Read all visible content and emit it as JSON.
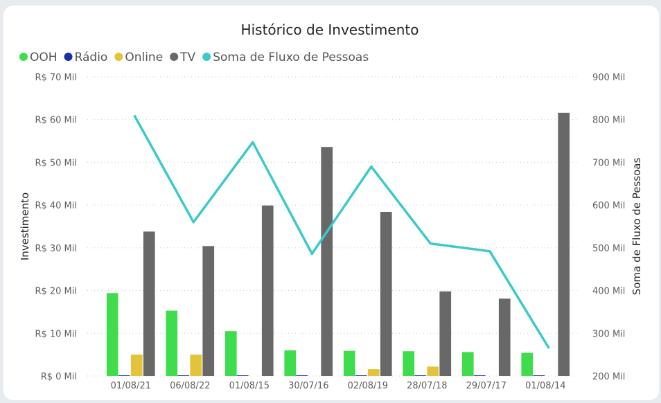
{
  "chart_data": {
    "type": "bar",
    "title": "Histórico de Investimento",
    "categories": [
      "01/08/21",
      "06/08/22",
      "01/08/15",
      "30/07/16",
      "02/08/19",
      "28/07/18",
      "29/07/17",
      "01/08/14"
    ],
    "series": [
      {
        "name": "OOH",
        "type": "bar",
        "axis": "left",
        "color": "#3fdd4e",
        "values": [
          19400,
          15300,
          10500,
          6000,
          5900,
          5800,
          5600,
          5400
        ]
      },
      {
        "name": "Rádio",
        "type": "bar",
        "axis": "left",
        "color": "#1b2fa6",
        "values": [
          150,
          150,
          150,
          150,
          150,
          150,
          150,
          150
        ]
      },
      {
        "name": "Online",
        "type": "bar",
        "axis": "left",
        "color": "#e3c33a",
        "values": [
          5000,
          5000,
          0,
          0,
          1600,
          2200,
          0,
          0
        ]
      },
      {
        "name": "TV",
        "type": "bar",
        "axis": "left",
        "color": "#686868",
        "values": [
          33800,
          30400,
          39900,
          53600,
          38400,
          19800,
          18100,
          61600
        ]
      },
      {
        "name": "Soma de Fluxo de Pessoas",
        "type": "line",
        "axis": "right",
        "color": "#3cc9c9",
        "values": [
          810000,
          560000,
          747000,
          486000,
          690000,
          510000,
          492000,
          265000
        ]
      }
    ],
    "ylabel": "Investimento",
    "ylabel_right": "Soma de Fluxo de Pessoas",
    "ylim": [
      0,
      70000
    ],
    "ylim_right": [
      200000,
      900000
    ],
    "y_ticks": [
      "R$ 0 Mil",
      "R$ 10 Mil",
      "R$ 20 Mil",
      "R$ 30 Mil",
      "R$ 40 Mil",
      "R$ 50 Mil",
      "R$ 60 Mil",
      "R$ 70 Mil"
    ],
    "y_ticks_right": [
      "200 Mil",
      "300 Mil",
      "400 Mil",
      "500 Mil",
      "600 Mil",
      "700 Mil",
      "800 Mil",
      "900 Mil"
    ],
    "grid": true,
    "legend_position": "top-left"
  }
}
